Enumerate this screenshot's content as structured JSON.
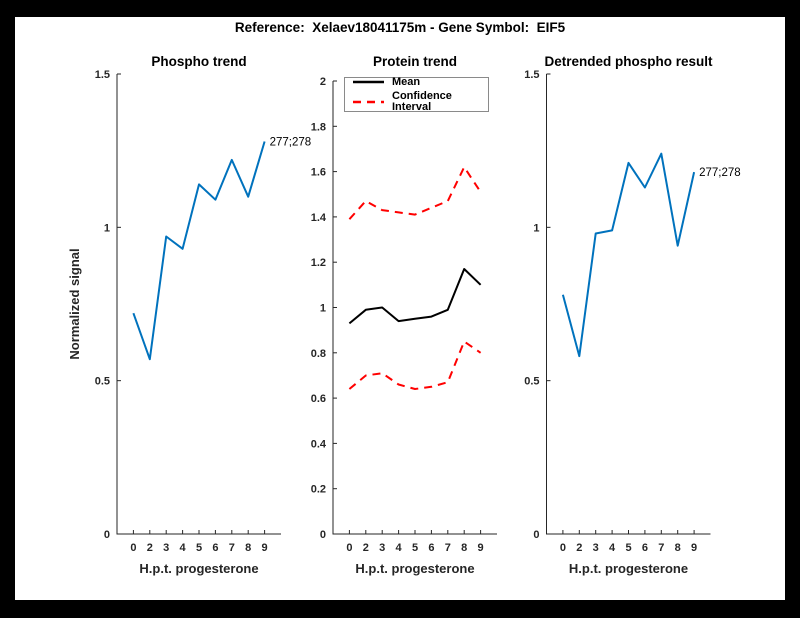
{
  "figure": {
    "title": "Reference:  Xelaev18041175m - Gene Symbol:  EIF5"
  },
  "colors": {
    "blue": "#0072BD",
    "red": "#FF0000",
    "black": "#000000",
    "axis": "#262626",
    "frame": "#000000",
    "canvas_bg": "#FFFFFF"
  },
  "legend": {
    "position": "northwest-of-protein-trend",
    "items": [
      {
        "label": "Mean",
        "style": "solid",
        "color": "#000000"
      },
      {
        "label": "Confidence Interval",
        "style": "dashed",
        "color": "#FF0000"
      }
    ]
  },
  "chart_data": [
    {
      "type": "line",
      "name": "phospho-trend",
      "title": "Phospho trend",
      "xlabel": "H.p.t. progesterone",
      "ylabel": "Normalized signal",
      "x": [
        0,
        2,
        3,
        4,
        5,
        6,
        7,
        8,
        9
      ],
      "x_spacing": "equal",
      "xticklabels": [
        "0",
        "2",
        "3",
        "4",
        "5",
        "6",
        "7",
        "8",
        "9"
      ],
      "ylim": [
        0,
        1.5
      ],
      "yticks": [
        0,
        0.5,
        1,
        1.5
      ],
      "yticklabels": [
        "0",
        "0.5",
        "1",
        "1.5"
      ],
      "grid": false,
      "series": [
        {
          "name": "phospho",
          "color": "#0072BD",
          "dashed": false,
          "values": [
            0.72,
            0.57,
            0.97,
            0.93,
            1.14,
            1.09,
            1.22,
            1.1,
            1.28
          ]
        }
      ],
      "annotation": {
        "text": "277;278",
        "x": 9,
        "y": 1.28
      }
    },
    {
      "type": "line",
      "name": "protein-trend",
      "title": "Protein trend",
      "xlabel": "H.p.t. progesterone",
      "ylabel": "",
      "x": [
        0,
        2,
        3,
        4,
        5,
        6,
        7,
        8,
        9
      ],
      "x_spacing": "equal",
      "xticklabels": [
        "0",
        "2",
        "3",
        "4",
        "5",
        "6",
        "7",
        "8",
        "9"
      ],
      "ylim": [
        0,
        2
      ],
      "yticks": [
        0,
        0.2,
        0.4,
        0.6,
        0.8,
        1,
        1.2,
        1.4,
        1.6,
        1.8,
        2
      ],
      "yticklabels": [
        "0",
        "0.2",
        "0.4",
        "0.6",
        "0.8",
        "1",
        "1.2",
        "1.4",
        "1.6",
        "1.8",
        "2"
      ],
      "grid": false,
      "legend_entries": [
        "Mean",
        "Confidence Interval"
      ],
      "series": [
        {
          "name": "ci-upper",
          "color": "#FF0000",
          "dashed": true,
          "values": [
            1.39,
            1.47,
            1.43,
            1.42,
            1.41,
            1.44,
            1.47,
            1.62,
            1.51
          ]
        },
        {
          "name": "mean",
          "color": "#000000",
          "dashed": false,
          "values": [
            0.93,
            0.99,
            1.0,
            0.94,
            0.95,
            0.96,
            0.99,
            1.17,
            1.1
          ]
        },
        {
          "name": "ci-lower",
          "color": "#FF0000",
          "dashed": true,
          "values": [
            0.64,
            0.7,
            0.71,
            0.66,
            0.64,
            0.65,
            0.67,
            0.85,
            0.8
          ]
        }
      ]
    },
    {
      "type": "line",
      "name": "detrended-phospho",
      "title": "Detrended phospho result",
      "xlabel": "H.p.t. progesterone",
      "ylabel": "",
      "x": [
        0,
        2,
        3,
        4,
        5,
        6,
        7,
        8,
        9
      ],
      "x_spacing": "equal",
      "xticklabels": [
        "0",
        "2",
        "3",
        "4",
        "5",
        "6",
        "7",
        "8",
        "9"
      ],
      "ylim": [
        0,
        1.5
      ],
      "yticks": [
        0,
        0.5,
        1,
        1.5
      ],
      "yticklabels": [
        "0",
        "0.5",
        "1",
        "1.5"
      ],
      "grid": false,
      "series": [
        {
          "name": "detrended-phospho",
          "color": "#0072BD",
          "dashed": false,
          "values": [
            0.78,
            0.58,
            0.98,
            0.99,
            1.21,
            1.13,
            1.24,
            0.94,
            1.18
          ]
        }
      ],
      "annotation": {
        "text": "277;278",
        "x": 9,
        "y": 1.18
      }
    }
  ]
}
